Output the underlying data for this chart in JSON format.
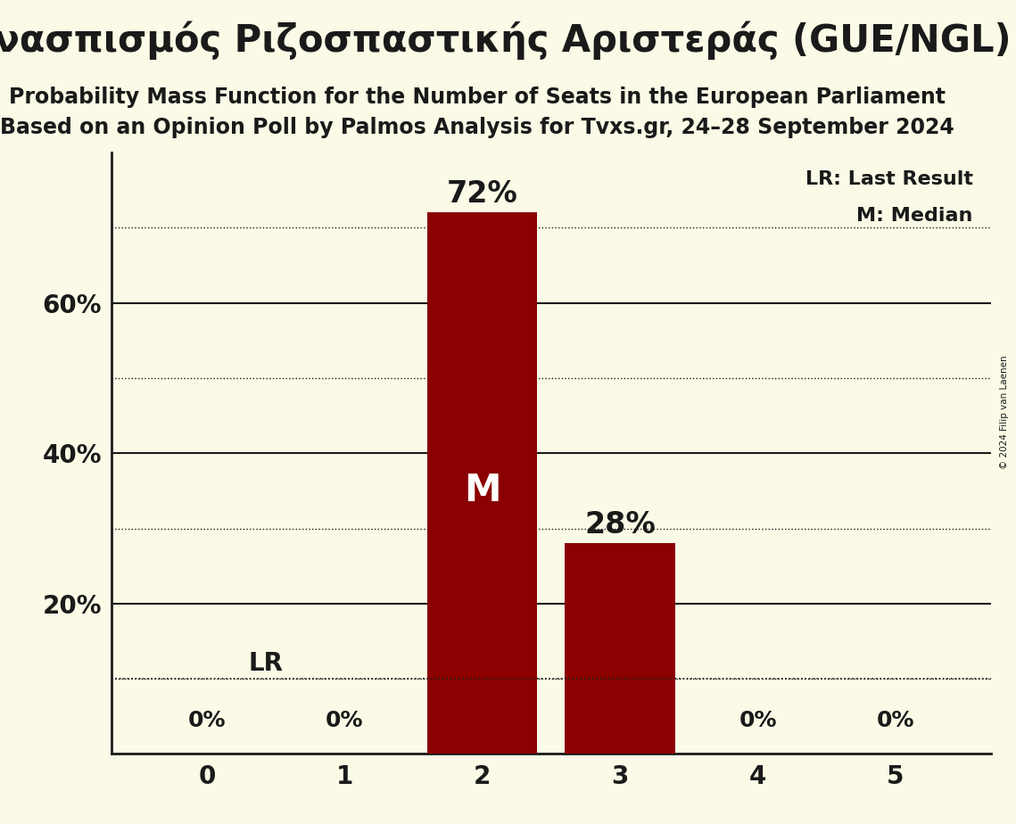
{
  "title": "Συνασπισμός Ριζοσπαστικής Αριστεράς (GUE/NGL)",
  "subtitle1": "Probability Mass Function for the Number of Seats in the European Parliament",
  "subtitle2": "Based on an Opinion Poll by Palmos Analysis for Tvxs.gr, 24–28 September 2024",
  "copyright": "© 2024 Filip van Laenen",
  "categories": [
    0,
    1,
    2,
    3,
    4,
    5
  ],
  "values": [
    0,
    0,
    0.72,
    0.28,
    0,
    0
  ],
  "bar_color": "#8B0000",
  "background_color": "#FAFAE6",
  "ylim": [
    0,
    0.8
  ],
  "yticks": [
    0.2,
    0.4,
    0.6
  ],
  "ytick_labels": [
    "20%",
    "40%",
    "60%"
  ],
  "solid_gridlines": [
    0.2,
    0.4,
    0.6
  ],
  "dotted_gridlines": [
    0.1,
    0.3,
    0.5,
    0.7
  ],
  "lr_value": 0.1,
  "lr_label": "LR",
  "median_seat": 2,
  "median_label": "M",
  "legend_lr": "LR: Last Result",
  "legend_m": "M: Median",
  "title_fontsize": 30,
  "subtitle_fontsize": 17,
  "axis_tick_fontsize": 20,
  "bar_label_fontsize": 24,
  "median_label_fontsize": 30,
  "legend_fontsize": 16,
  "zero_label_fontsize": 18,
  "lr_label_fontsize": 20,
  "text_color": "#1A1A1A"
}
